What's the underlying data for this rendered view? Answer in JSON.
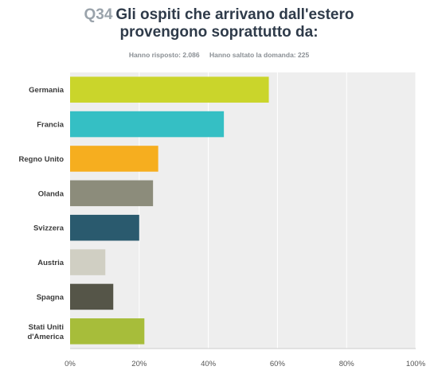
{
  "header": {
    "question_number": "Q34",
    "title_line1": "Gli ospiti che arrivano dall'estero",
    "title_line2": "provengono soprattutto da:",
    "answered": "Hanno risposto: 2.086",
    "skipped": "Hanno saltato la domanda: 225"
  },
  "chart_data": {
    "type": "bar",
    "orientation": "horizontal",
    "categories": [
      "Germania",
      "Francia",
      "Regno Unito",
      "Olanda",
      "Svizzera",
      "Austria",
      "Spagna",
      "Stati Uniti d'America"
    ],
    "values": [
      57.5,
      44.5,
      25.5,
      24,
      20,
      10.2,
      12.5,
      21.5
    ],
    "colors": [
      "#cad52b",
      "#35bfc4",
      "#f6ae1f",
      "#8c8c7b",
      "#2a5a6e",
      "#d0cfc3",
      "#555548",
      "#a7bd3a"
    ],
    "xlim": [
      0,
      100
    ],
    "xticks": [
      "0%",
      "20%",
      "40%",
      "60%",
      "80%",
      "100%"
    ],
    "grid": true,
    "plot_background": "#eeeeee"
  }
}
